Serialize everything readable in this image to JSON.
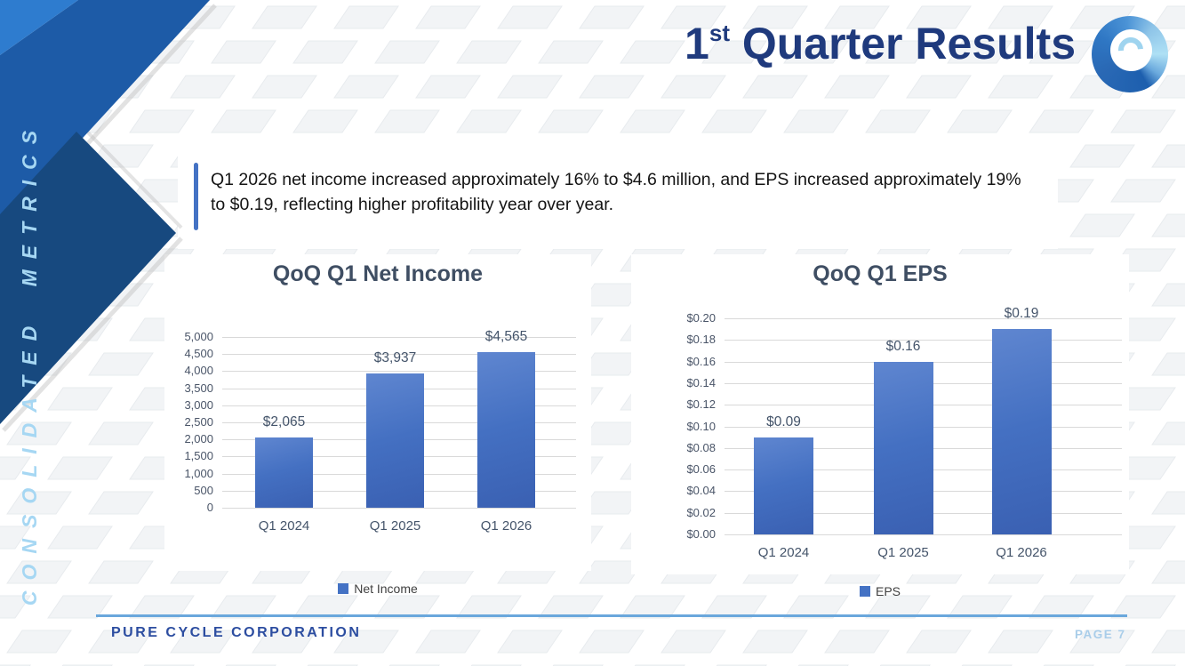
{
  "header": {
    "title_number": "1",
    "title_ordinal": "st",
    "title_text": " Quarter Results",
    "logo_name": "pure-cycle-swirl-logo"
  },
  "sidebar": {
    "vertical_label": "CONSOLIDATED METRICS"
  },
  "callout": {
    "line1": "Q1 2026 net income increased approximately 16% to $4.6 million, and EPS increased approximately 19%",
    "line2": "to $0.19, reflecting higher profitability year over year."
  },
  "chart_data": [
    {
      "type": "bar",
      "title": "QoQ Q1 Net Income",
      "categories": [
        "Q1 2024",
        "Q1 2025",
        "Q1 2026"
      ],
      "values": [
        2065,
        3937,
        4565
      ],
      "data_labels": [
        "$2,065",
        "$3,937",
        "$4,565"
      ],
      "ylim": [
        0,
        5000
      ],
      "ytick_step": 500,
      "ytick_labels": [
        "0",
        "500",
        "1,000",
        "1,500",
        "2,000",
        "2,500",
        "3,000",
        "3,500",
        "4,000",
        "4,500",
        "5,000"
      ],
      "legend": [
        "Net Income"
      ],
      "legend_position": "bottom",
      "grid": true,
      "bar_color": "#4472c4"
    },
    {
      "type": "bar",
      "title": "QoQ Q1 EPS",
      "categories": [
        "Q1 2024",
        "Q1 2025",
        "Q1 2026"
      ],
      "values": [
        0.09,
        0.16,
        0.19
      ],
      "data_labels": [
        "$0.09",
        "$0.16",
        "$0.19"
      ],
      "ylim": [
        0,
        0.2
      ],
      "ytick_step": 0.02,
      "ytick_labels": [
        "$0.00",
        "$0.02",
        "$0.04",
        "$0.06",
        "$0.08",
        "$0.10",
        "$0.12",
        "$0.14",
        "$0.16",
        "$0.18",
        "$0.20"
      ],
      "legend": [
        "EPS"
      ],
      "legend_position": "bottom",
      "grid": true,
      "bar_color": "#4472c4"
    }
  ],
  "footer": {
    "company": "PURE CYCLE CORPORATION",
    "page": "PAGE 7"
  },
  "colors": {
    "title_navy": "#1f3a7d",
    "ribbon_light_blue": "#2e7ccf",
    "ribbon_mid_blue": "#1d5ba7",
    "ribbon_dark_navy": "#17497f",
    "sidebar_text": "#a6d7f3",
    "bar_blue": "#4472c4",
    "footer_rule": "#6aa7dc",
    "footer_company": "#2c4da0",
    "footer_page": "#a9cde9",
    "chart_title": "#3f4e63"
  }
}
